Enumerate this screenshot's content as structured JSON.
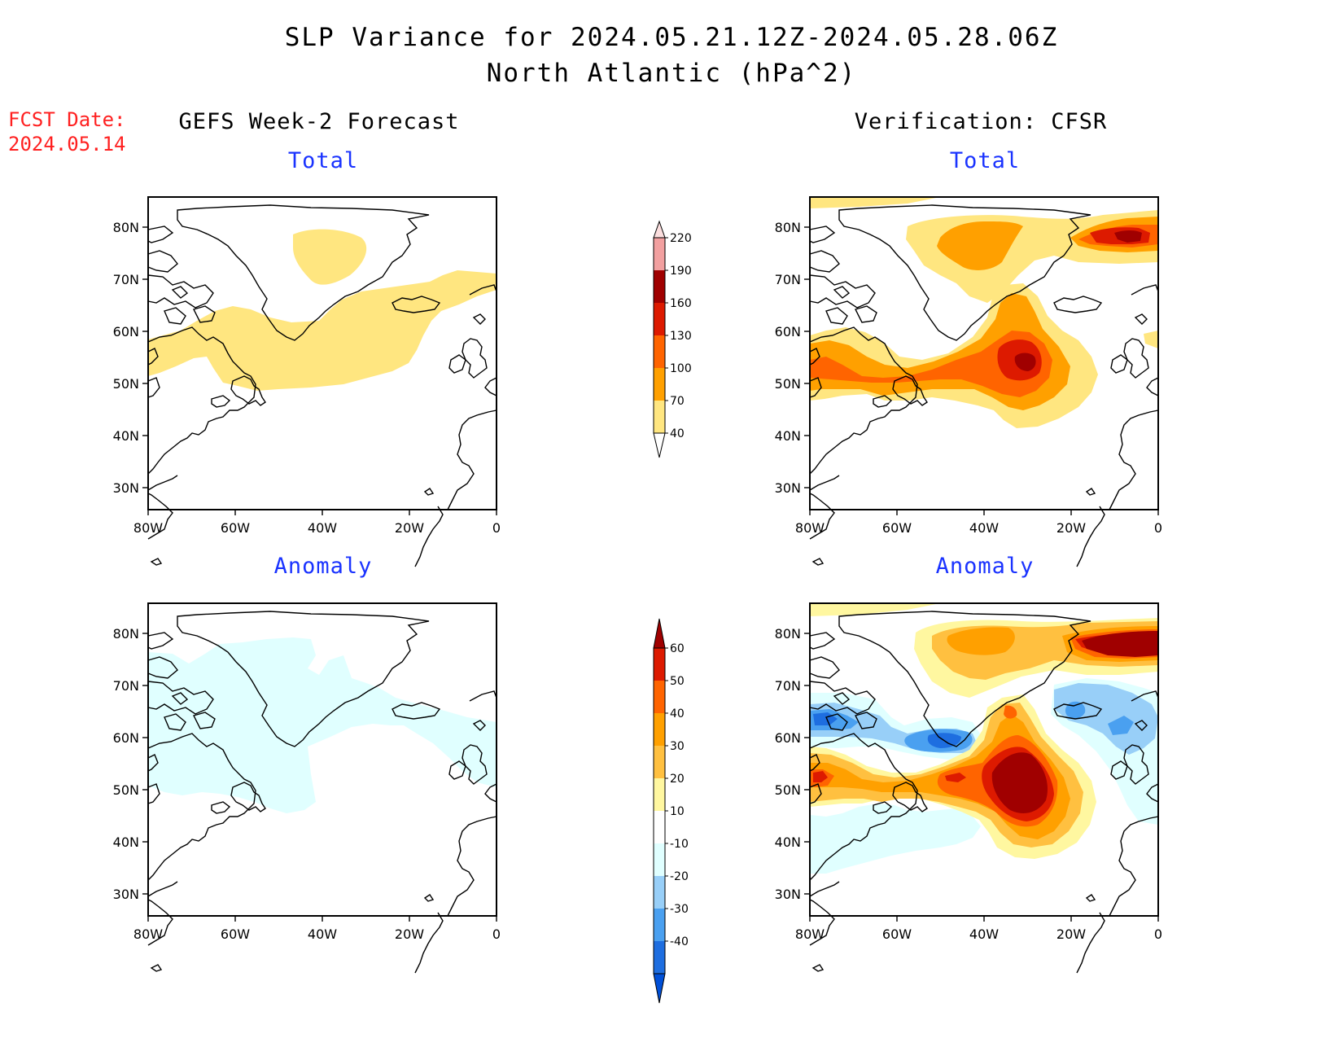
{
  "header": {
    "title": "SLP Variance for 2024.05.21.12Z-2024.05.28.06Z",
    "subtitle": "North Atlantic (hPa^2)"
  },
  "fcst": {
    "label": "FCST Date:",
    "date": "2024.05.14"
  },
  "columns": {
    "left": "GEFS Week-2 Forecast",
    "right": "Verification: CFSR"
  },
  "panels": {
    "top_left": "Total",
    "top_right": "Total",
    "bottom_left": "Anomaly",
    "bottom_right": "Anomaly"
  },
  "map_axes": {
    "lat_labels": [
      "80N",
      "70N",
      "60N",
      "50N",
      "40N",
      "30N"
    ],
    "lon_labels": [
      "80W",
      "60W",
      "40W",
      "20W",
      "0"
    ]
  },
  "colorbar_total": {
    "levels": [
      "220",
      "190",
      "160",
      "130",
      "100",
      "70",
      "40"
    ],
    "colors": [
      "#fbdede",
      "#f2a0a0",
      "#a00000",
      "#dd1a00",
      "#ff6400",
      "#ffa000",
      "#ffe680"
    ]
  },
  "colorbar_anomaly": {
    "levels": [
      "60",
      "50",
      "40",
      "30",
      "20",
      "10",
      "-10",
      "-20",
      "-30",
      "-40"
    ],
    "colors": [
      "#a00000",
      "#dd1a00",
      "#ff6400",
      "#ffa000",
      "#ffc040",
      "#fff7a0",
      "#ffffff",
      "#e0ffff",
      "#98cff8",
      "#4aa0f0",
      "#1e6ee0",
      "#0050d8"
    ]
  },
  "colors": {
    "title_red": "#ff2020",
    "subtitle_blue": "#1a33ff"
  }
}
